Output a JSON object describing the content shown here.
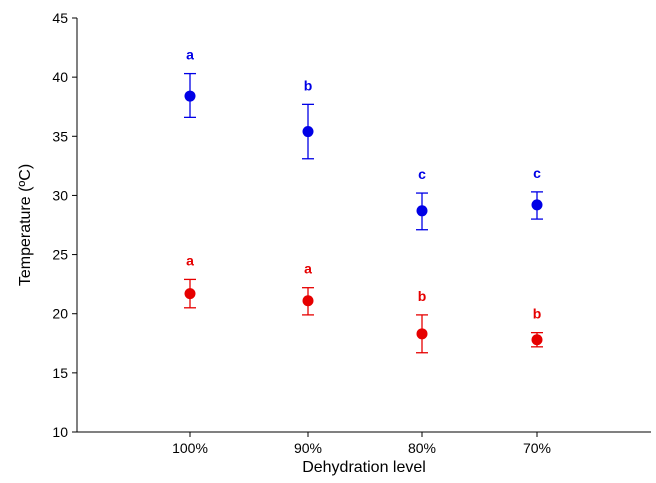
{
  "chart_data": {
    "type": "scatter",
    "title": "",
    "xlabel": "Dehydration level",
    "ylabel": "Temperature (ºC)",
    "categories": [
      "100%",
      "90%",
      "80%",
      "70%"
    ],
    "ylim": [
      10,
      45
    ],
    "yticks": [
      10,
      15,
      20,
      25,
      30,
      35,
      40,
      45
    ],
    "grid": false,
    "legend": "none",
    "series": [
      {
        "color": "#0000e6",
        "values": [
          38.4,
          35.4,
          28.7,
          29.2
        ],
        "err_low": [
          36.6,
          33.1,
          27.1,
          28.0
        ],
        "err_high": [
          40.3,
          37.7,
          30.2,
          30.3
        ],
        "labels": [
          "a",
          "b",
          "c",
          "c"
        ]
      },
      {
        "color": "#e60000",
        "values": [
          21.7,
          21.1,
          18.3,
          17.8
        ],
        "err_low": [
          20.5,
          19.9,
          16.7,
          17.2
        ],
        "err_high": [
          22.9,
          22.2,
          19.9,
          18.4
        ],
        "labels": [
          "a",
          "a",
          "b",
          "b"
        ]
      }
    ]
  }
}
